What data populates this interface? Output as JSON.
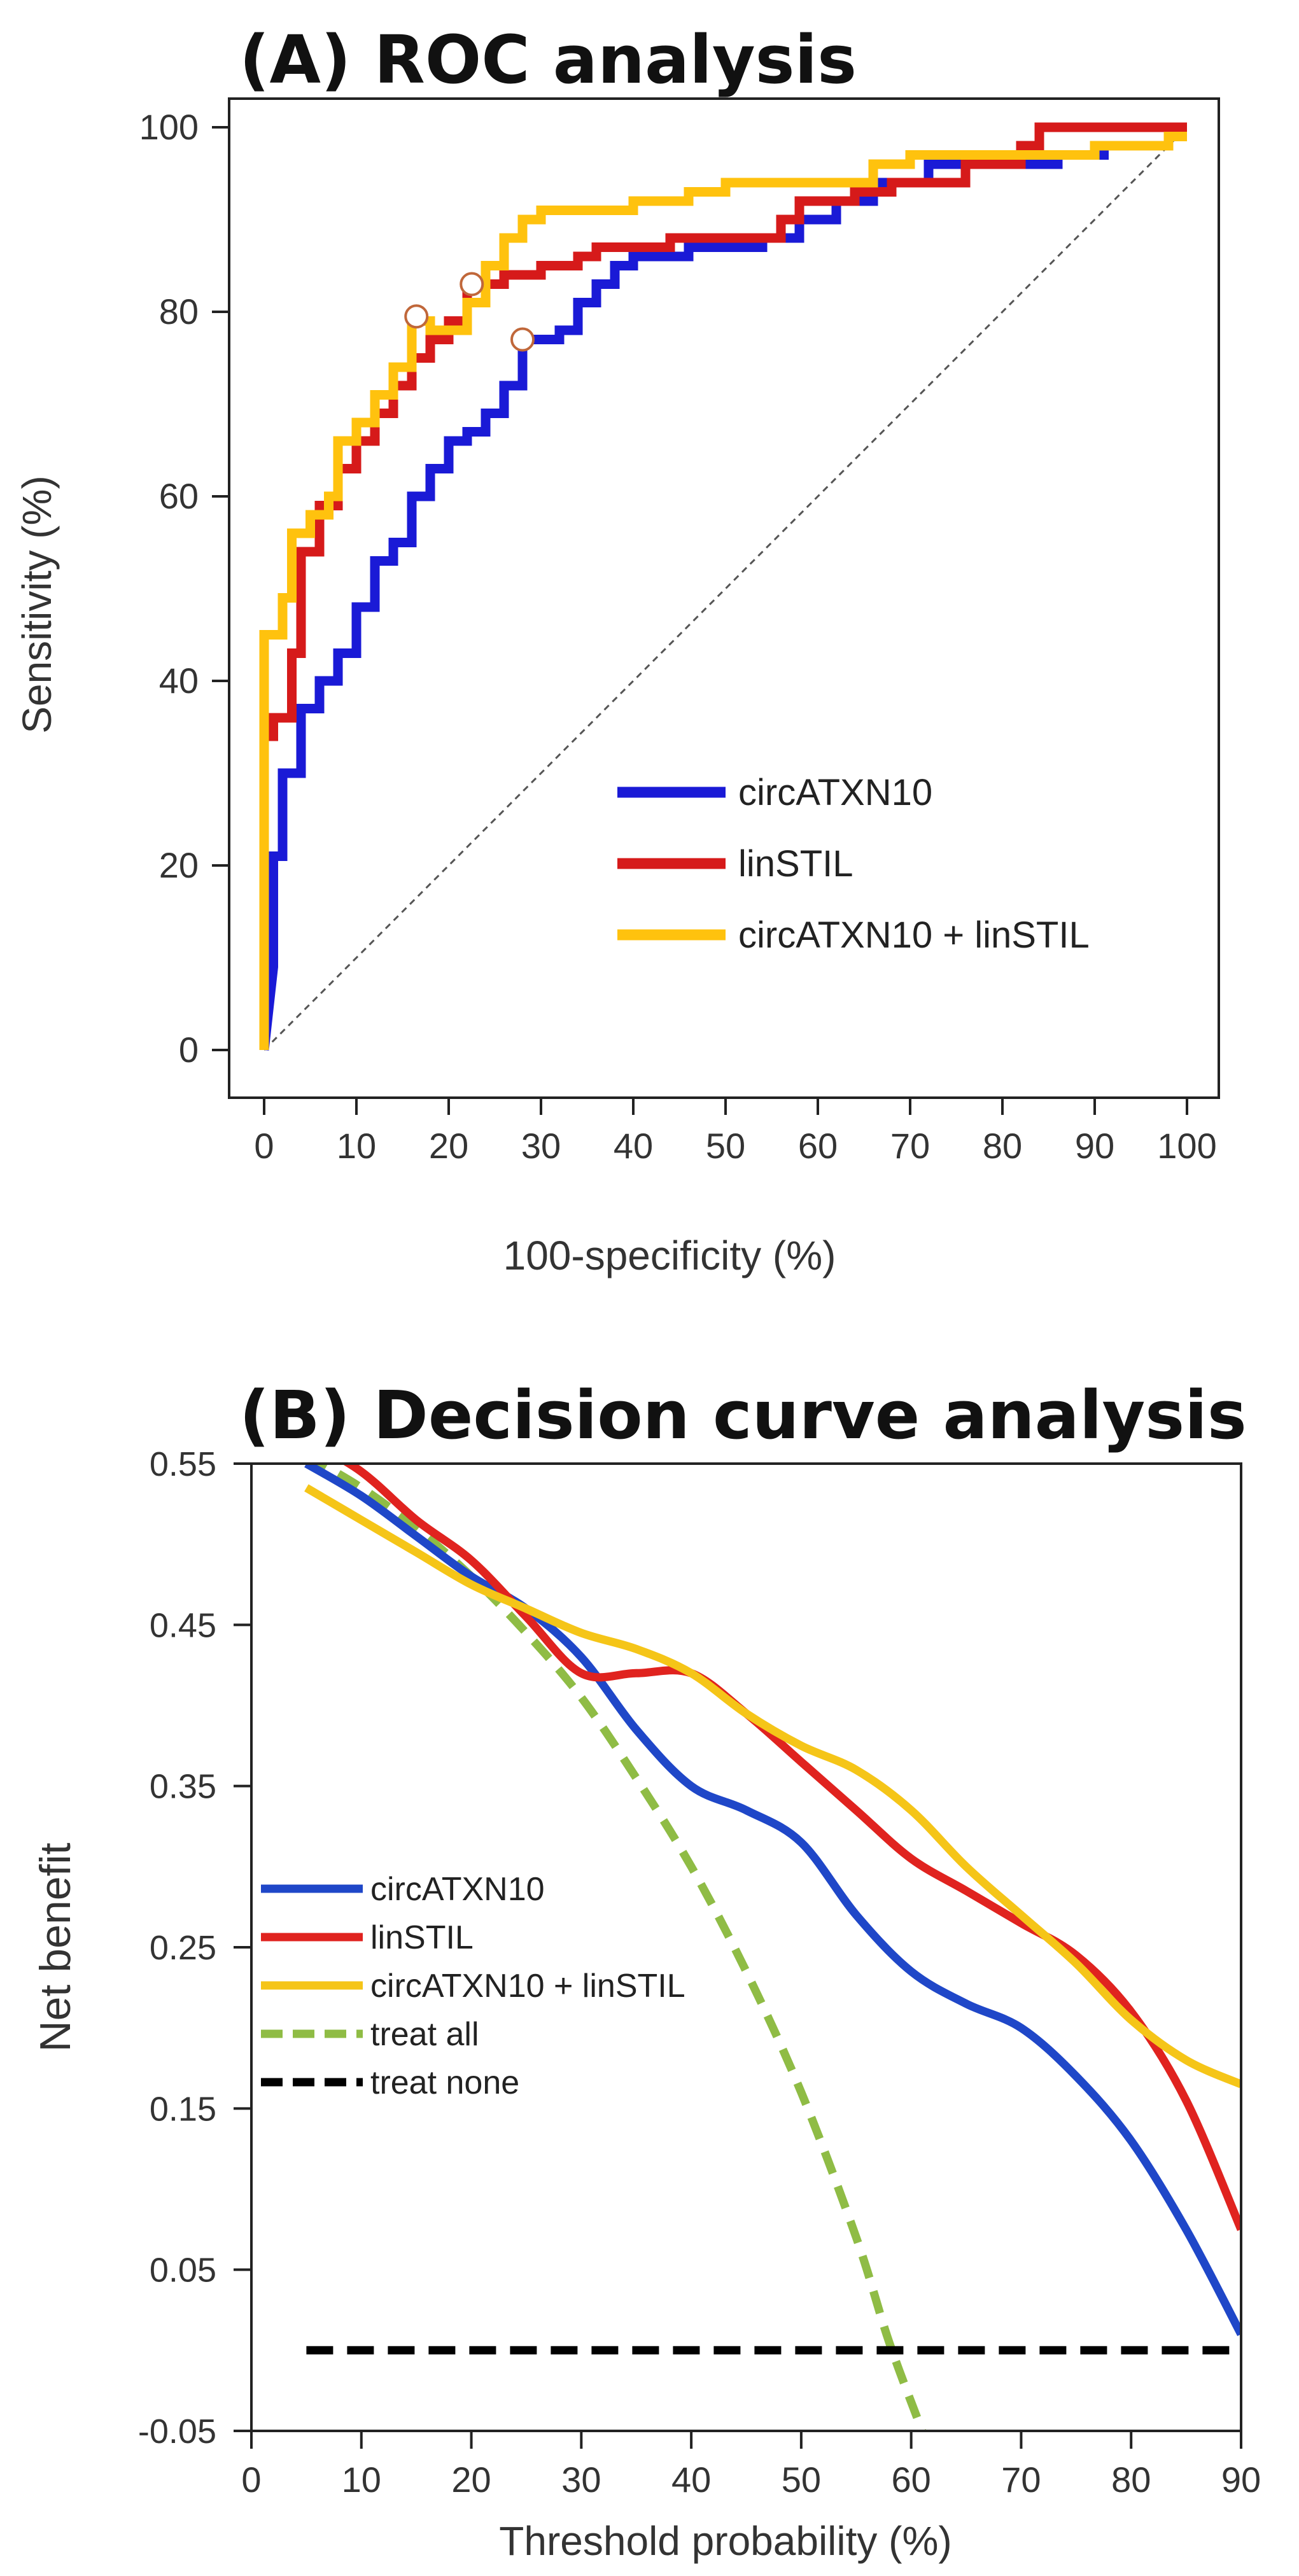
{
  "chart_data": [
    {
      "type": "line",
      "title": "(A) ROC analysis",
      "xlabel": "100-specificity (%)",
      "ylabel": "Sensitivity (%)",
      "xlim": [
        0,
        100
      ],
      "ylim": [
        0,
        100
      ],
      "xticks": [
        "0",
        "10",
        "20",
        "30",
        "40",
        "50",
        "60",
        "70",
        "80",
        "90",
        "100"
      ],
      "yticks": [
        "0",
        "20",
        "40",
        "60",
        "80",
        "100"
      ],
      "grid": false,
      "legend_position": "lower-right",
      "reference_line": {
        "from": [
          0,
          0
        ],
        "to": [
          100,
          100
        ],
        "style": "dashed",
        "color": "#555555"
      },
      "series": [
        {
          "name": "circATXN10",
          "color": "#1a1ad6",
          "points": [
            [
              0,
              0
            ],
            [
              1,
              9
            ],
            [
              1,
              21
            ],
            [
              2,
              21
            ],
            [
              2,
              30
            ],
            [
              4,
              30
            ],
            [
              4,
              37
            ],
            [
              6,
              37
            ],
            [
              6,
              40
            ],
            [
              8,
              40
            ],
            [
              8,
              43
            ],
            [
              10,
              43
            ],
            [
              10,
              48
            ],
            [
              12,
              48
            ],
            [
              12,
              53
            ],
            [
              14,
              53
            ],
            [
              14,
              55
            ],
            [
              16,
              55
            ],
            [
              16,
              60
            ],
            [
              18,
              60
            ],
            [
              18,
              63
            ],
            [
              20,
              63
            ],
            [
              20,
              66
            ],
            [
              22,
              66
            ],
            [
              22,
              67
            ],
            [
              24,
              67
            ],
            [
              24,
              69
            ],
            [
              26,
              69
            ],
            [
              26,
              72
            ],
            [
              28,
              72
            ],
            [
              28,
              77
            ],
            [
              32,
              77
            ],
            [
              32,
              78
            ],
            [
              34,
              78
            ],
            [
              34,
              81
            ],
            [
              36,
              81
            ],
            [
              36,
              83
            ],
            [
              38,
              83
            ],
            [
              38,
              85
            ],
            [
              40,
              85
            ],
            [
              40,
              86
            ],
            [
              46,
              86
            ],
            [
              46,
              87
            ],
            [
              54,
              87
            ],
            [
              54,
              88
            ],
            [
              58,
              88
            ],
            [
              58,
              90
            ],
            [
              62,
              90
            ],
            [
              62,
              92
            ],
            [
              66,
              92
            ],
            [
              66,
              94
            ],
            [
              72,
              94
            ],
            [
              72,
              96
            ],
            [
              86,
              96
            ],
            [
              86,
              97
            ],
            [
              90,
              97
            ],
            [
              91,
              97
            ],
            [
              91,
              98
            ]
          ]
        },
        {
          "name": "linSTIL",
          "color": "#d61a1a",
          "points": [
            [
              0,
              0
            ],
            [
              0,
              34
            ],
            [
              1,
              34
            ],
            [
              1,
              36
            ],
            [
              3,
              36
            ],
            [
              3,
              43
            ],
            [
              4,
              43
            ],
            [
              4,
              54
            ],
            [
              6,
              54
            ],
            [
              6,
              59
            ],
            [
              8,
              59
            ],
            [
              8,
              63
            ],
            [
              10,
              63
            ],
            [
              10,
              66
            ],
            [
              12,
              66
            ],
            [
              12,
              69
            ],
            [
              14,
              69
            ],
            [
              14,
              72
            ],
            [
              16,
              72
            ],
            [
              16,
              75
            ],
            [
              18,
              75
            ],
            [
              18,
              77
            ],
            [
              20,
              77
            ],
            [
              20,
              79
            ],
            [
              22,
              79
            ],
            [
              22,
              83
            ],
            [
              26,
              83
            ],
            [
              26,
              84
            ],
            [
              30,
              84
            ],
            [
              30,
              85
            ],
            [
              34,
              85
            ],
            [
              34,
              86
            ],
            [
              36,
              86
            ],
            [
              36,
              87
            ],
            [
              44,
              87
            ],
            [
              44,
              88
            ],
            [
              56,
              88
            ],
            [
              56,
              90
            ],
            [
              58,
              90
            ],
            [
              58,
              92
            ],
            [
              64,
              92
            ],
            [
              64,
              93
            ],
            [
              68,
              93
            ],
            [
              68,
              94
            ],
            [
              76,
              94
            ],
            [
              76,
              96
            ],
            [
              82,
              96
            ],
            [
              82,
              98
            ],
            [
              84,
              98
            ],
            [
              84,
              100
            ],
            [
              100,
              100
            ]
          ]
        },
        {
          "name": "circATXN10 + linSTIL",
          "color": "#ffc20e",
          "points": [
            [
              0,
              0
            ],
            [
              0,
              45
            ],
            [
              2,
              45
            ],
            [
              2,
              49
            ],
            [
              3,
              49
            ],
            [
              3,
              56
            ],
            [
              5,
              56
            ],
            [
              5,
              58
            ],
            [
              7,
              58
            ],
            [
              7,
              60
            ],
            [
              8,
              60
            ],
            [
              8,
              66
            ],
            [
              10,
              66
            ],
            [
              10,
              68
            ],
            [
              12,
              68
            ],
            [
              12,
              71
            ],
            [
              14,
              71
            ],
            [
              14,
              74
            ],
            [
              16,
              74
            ],
            [
              16,
              79
            ],
            [
              18,
              79
            ],
            [
              18,
              78
            ],
            [
              22,
              78
            ],
            [
              22,
              81
            ],
            [
              24,
              81
            ],
            [
              24,
              85
            ],
            [
              26,
              85
            ],
            [
              26,
              88
            ],
            [
              28,
              88
            ],
            [
              28,
              90
            ],
            [
              30,
              90
            ],
            [
              30,
              91
            ],
            [
              40,
              91
            ],
            [
              40,
              92
            ],
            [
              46,
              92
            ],
            [
              46,
              93
            ],
            [
              50,
              93
            ],
            [
              50,
              94
            ],
            [
              66,
              94
            ],
            [
              66,
              96
            ],
            [
              70,
              96
            ],
            [
              70,
              97
            ],
            [
              90,
              97
            ],
            [
              90,
              98
            ],
            [
              98,
              98
            ],
            [
              98,
              99
            ],
            [
              100,
              99
            ]
          ]
        }
      ],
      "cutoff_markers": [
        [
          16.5,
          79.5
        ],
        [
          22.5,
          83
        ],
        [
          28,
          77
        ]
      ]
    },
    {
      "type": "line",
      "title": "(B) Decision curve analysis",
      "xlabel": "Threshold probability (%)",
      "ylabel": "Net benefit",
      "xlim": [
        0,
        90
      ],
      "ylim": [
        -0.05,
        0.55
      ],
      "xticks": [
        "0",
        "10",
        "20",
        "30",
        "40",
        "50",
        "60",
        "70",
        "80",
        "90"
      ],
      "yticks": [
        "-0.05",
        "0.05",
        "0.15",
        "0.25",
        "0.35",
        "0.45",
        "0.55"
      ],
      "grid": false,
      "legend_position": "middle-left",
      "series": [
        {
          "name": "circATXN10",
          "color": "#1f47c8",
          "style": "solid",
          "points": [
            [
              5,
              0.55
            ],
            [
              10,
              0.53
            ],
            [
              15,
              0.505
            ],
            [
              20,
              0.48
            ],
            [
              25,
              0.46
            ],
            [
              30,
              0.43
            ],
            [
              35,
              0.385
            ],
            [
              40,
              0.35
            ],
            [
              45,
              0.335
            ],
            [
              50,
              0.315
            ],
            [
              55,
              0.27
            ],
            [
              60,
              0.235
            ],
            [
              65,
              0.215
            ],
            [
              70,
              0.2
            ],
            [
              75,
              0.17
            ],
            [
              80,
              0.13
            ],
            [
              85,
              0.075
            ],
            [
              90,
              0.01
            ]
          ]
        },
        {
          "name": "linSTIL",
          "color": "#e0231f",
          "style": "solid",
          "points": [
            [
              5,
              0.565
            ],
            [
              10,
              0.545
            ],
            [
              15,
              0.515
            ],
            [
              20,
              0.49
            ],
            [
              25,
              0.455
            ],
            [
              30,
              0.42
            ],
            [
              35,
              0.42
            ],
            [
              40,
              0.42
            ],
            [
              45,
              0.395
            ],
            [
              50,
              0.365
            ],
            [
              55,
              0.335
            ],
            [
              60,
              0.305
            ],
            [
              65,
              0.285
            ],
            [
              70,
              0.265
            ],
            [
              75,
              0.245
            ],
            [
              80,
              0.21
            ],
            [
              85,
              0.155
            ],
            [
              90,
              0.075
            ]
          ]
        },
        {
          "name": "circATXN10 + linSTIL",
          "color": "#f5c518",
          "style": "solid",
          "points": [
            [
              5,
              0.535
            ],
            [
              10,
              0.515
            ],
            [
              15,
              0.495
            ],
            [
              20,
              0.475
            ],
            [
              25,
              0.46
            ],
            [
              30,
              0.445
            ],
            [
              35,
              0.435
            ],
            [
              40,
              0.42
            ],
            [
              45,
              0.395
            ],
            [
              50,
              0.375
            ],
            [
              55,
              0.36
            ],
            [
              60,
              0.335
            ],
            [
              65,
              0.3
            ],
            [
              70,
              0.27
            ],
            [
              75,
              0.24
            ],
            [
              80,
              0.205
            ],
            [
              85,
              0.18
            ],
            [
              90,
              0.165
            ]
          ]
        },
        {
          "name": "treat all",
          "color": "#8fbc45",
          "style": "dashed",
          "points": [
            [
              5,
              0.555
            ],
            [
              10,
              0.535
            ],
            [
              15,
              0.51
            ],
            [
              20,
              0.48
            ],
            [
              25,
              0.445
            ],
            [
              30,
              0.405
            ],
            [
              35,
              0.355
            ],
            [
              40,
              0.3
            ],
            [
              45,
              0.235
            ],
            [
              50,
              0.16
            ],
            [
              55,
              0.07
            ],
            [
              58,
              0.005
            ],
            [
              61,
              -0.05
            ]
          ]
        },
        {
          "name": "treat none",
          "color": "#000000",
          "style": "dashed",
          "points": [
            [
              5,
              0
            ],
            [
              90,
              0
            ]
          ]
        }
      ]
    }
  ]
}
